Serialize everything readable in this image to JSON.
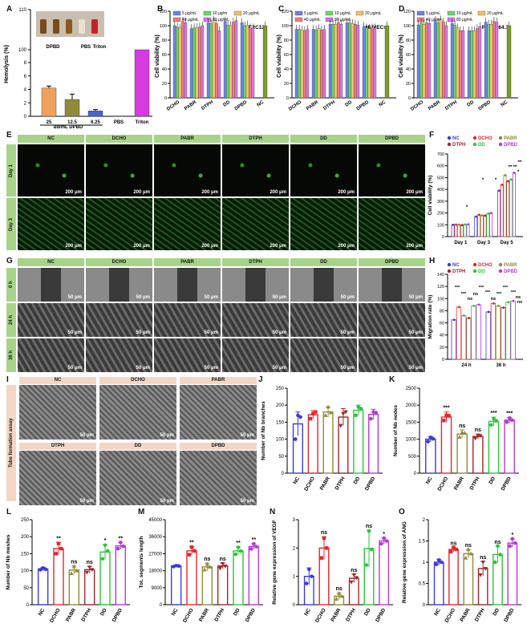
{
  "panels": {
    "A": "A",
    "B": "B",
    "C": "C",
    "D": "D",
    "E": "E",
    "F": "F",
    "G": "G",
    "H": "H",
    "I": "I",
    "J": "J",
    "K": "K",
    "L": "L",
    "M": "M",
    "N": "N",
    "O": "O"
  },
  "colors": {
    "NC": "#3b3bde",
    "DCHO": "#e8262c",
    "PABR": "#8f8b3a",
    "DTPH": "#a0262c",
    "DD": "#2fc43a",
    "DPBD": "#b43bd6"
  },
  "conc_colors": [
    "#6d80ee",
    "#6bd76b",
    "#e6c46a",
    "#f17b7b",
    "#d476e6",
    "#7c9a2a"
  ],
  "panelA": {
    "ylabel": "Hemolysis (%)",
    "photo_labels": [
      "DPBD",
      "PBS",
      "Triton"
    ],
    "xsub": "μg/mL DPBD",
    "categories": [
      "25",
      "12.5",
      "6.25",
      "PBS",
      "Triton"
    ],
    "values": [
      4.2,
      2.5,
      0.8,
      0.05,
      100
    ],
    "errors": [
      0.3,
      0.8,
      0.2,
      0.0,
      0.0
    ],
    "bar_colors": [
      "#f0a05e",
      "#8f8b3a",
      "#4a63d6",
      "#3b3bde",
      "#d63be0"
    ],
    "yticks": [
      0,
      2,
      4,
      6,
      8,
      100,
      110
    ]
  },
  "viability_panels": [
    {
      "id": "B",
      "cell": "C2C12",
      "legend": [
        "5 μg/mL",
        "10 μg/m",
        "20 μg/mL",
        "40 μg/mL",
        "80 μg/mL"
      ],
      "ylabel": "Cell viability (%)",
      "categories": [
        "DCHO",
        "PABR",
        "DTPH",
        "DD",
        "DPBD",
        "NC"
      ],
      "series": [
        [
          100,
          98,
          97,
          106,
          104
        ],
        [
          96,
          97,
          97,
          98,
          100
        ],
        [
          104,
          103,
          107,
          103,
          93
        ],
        [
          106,
          101,
          100,
          105,
          107
        ],
        [
          104,
          100,
          101,
          97,
          97
        ],
        [
          100
        ]
      ],
      "dcho_low": [
        92,
        85,
        76
      ]
    },
    {
      "id": "C",
      "cell": "HUVECs",
      "legend": [
        "5 μg/mL",
        "10 μg/mL",
        "20 μg/mL",
        "40 μg/mL",
        "80 μg/mL"
      ],
      "ylabel": "Cell viability (%)",
      "categories": [
        "DCHO",
        "PABR",
        "DTPH",
        "DD",
        "DPBD",
        "NC"
      ],
      "series": [
        [
          95,
          95,
          94,
          93,
          95
        ],
        [
          95,
          94,
          96,
          94,
          95
        ],
        [
          102,
          102,
          102,
          104,
          102
        ],
        [
          104,
          104,
          103,
          102,
          101
        ],
        [
          99,
          97,
          96,
          97,
          97
        ],
        [
          100
        ]
      ]
    },
    {
      "id": "D",
      "cell": "RAW 264.7",
      "legend": [
        "5 μg/mL",
        "10 μg/mL",
        "20 μg/mL",
        "40 μg/mL",
        "80 μg/mL"
      ],
      "ylabel": "Cell viability (%)",
      "categories": [
        "DCHO",
        "PABR",
        "DTPH",
        "DD",
        "DPBD",
        "NC"
      ],
      "series": [
        [
          101,
          104,
          102,
          104,
          103
        ],
        [
          107,
          104,
          108,
          105,
          100
        ],
        [
          103,
          101,
          97,
          93,
          93
        ],
        [
          93,
          93,
          93,
          96,
          99
        ],
        [
          105,
          102,
          102,
          106,
          105
        ],
        [
          100
        ]
      ]
    }
  ],
  "panelE": {
    "cols": [
      "NC",
      "DCHO",
      "PABR",
      "DTPH",
      "DD",
      "DPBD"
    ],
    "rows": [
      "Day 1",
      "Day 3"
    ],
    "scale": "200 μm"
  },
  "panelF": {
    "ylabel": "Cell viability (%)",
    "categories": [
      "Day 1",
      "Day 3",
      "Day 5"
    ],
    "legend": [
      "NC",
      "DCHO",
      "PABR",
      "DTPH",
      "DD",
      "DPBD"
    ],
    "values": {
      "NC": [
        100,
        170,
        390
      ],
      "DCHO": [
        102,
        185,
        440
      ],
      "PABR": [
        101,
        180,
        520
      ],
      "DTPH": [
        98,
        178,
        470
      ],
      "DD": [
        103,
        195,
        485
      ],
      "DPBD": [
        104,
        200,
        540
      ]
    },
    "yticks": [
      0,
      100,
      200,
      300,
      400,
      500,
      600,
      700
    ],
    "sig": [
      "*",
      "*",
      "*",
      "**",
      "**",
      "*",
      "**"
    ]
  },
  "panelG": {
    "cols": [
      "NC",
      "DCHO",
      "PABR",
      "DTPH",
      "DD",
      "DPBD"
    ],
    "rows": [
      "0 h",
      "24 h",
      "36 h"
    ],
    "scale": "50 μm"
  },
  "panelH": {
    "ylabel": "Migration rate (%)",
    "categories": [
      "24 h",
      "36 h"
    ],
    "legend": [
      "NC",
      "DCHO",
      "PABR",
      "DTPH",
      "DD",
      "DPBD"
    ],
    "values": {
      "NC": [
        65,
        78
      ],
      "DCHO": [
        86,
        92
      ],
      "PABR": [
        72,
        88
      ],
      "DTPH": [
        68,
        85
      ],
      "DD": [
        88,
        94
      ],
      "DPBD": [
        90,
        96
      ]
    },
    "yticks": [
      0,
      20,
      40,
      60,
      80,
      100,
      120,
      140
    ],
    "sig": [
      "***",
      "***",
      "ns",
      "ns",
      "***",
      "***",
      "ns",
      "***",
      "***",
      "***",
      "ns",
      "ns"
    ]
  },
  "panelI": {
    "side": "Tube formation assay",
    "tiles": [
      "NC",
      "DCHO",
      "PABR",
      "DTPH",
      "DD",
      "DPBD"
    ],
    "scale": "50 μm"
  },
  "dot_panels": [
    {
      "id": "J",
      "ylabel": "Number of Nb branches",
      "ymax": 250,
      "yticks": [
        0,
        50,
        100,
        150,
        200,
        250
      ],
      "means": [
        145,
        172,
        180,
        165,
        185,
        173
      ],
      "errs": [
        35,
        12,
        15,
        25,
        15,
        15
      ],
      "pts": [
        [
          100,
          170,
          165
        ],
        [
          160,
          175,
          180
        ],
        [
          170,
          195,
          178
        ],
        [
          140,
          175,
          180
        ],
        [
          170,
          195,
          190
        ],
        [
          160,
          180,
          178
        ]
      ],
      "sig": [
        "",
        "",
        "",
        "",
        "",
        ""
      ]
    },
    {
      "id": "K",
      "ylabel": "Number of Nb nodes",
      "ymax": 2500,
      "yticks": [
        0,
        500,
        1000,
        1500,
        2000,
        2500
      ],
      "means": [
        1000,
        1650,
        1150,
        1080,
        1520,
        1560
      ],
      "errs": [
        80,
        150,
        120,
        70,
        130,
        80
      ],
      "pts": [
        [
          930,
          1050,
          1010
        ],
        [
          1550,
          1700,
          1690
        ],
        [
          1060,
          1200,
          1180
        ],
        [
          1020,
          1110,
          1100
        ],
        [
          1420,
          1600,
          1540
        ],
        [
          1500,
          1620,
          1560
        ]
      ],
      "sig": [
        "",
        "***",
        "ns",
        "ns",
        "***",
        "***"
      ]
    },
    {
      "id": "L",
      "ylabel": "Number of Nb meshes",
      "ymax": 250,
      "yticks": [
        0,
        50,
        100,
        150,
        200,
        250
      ],
      "means": [
        105,
        165,
        102,
        103,
        155,
        173
      ],
      "errs": [
        5,
        18,
        12,
        10,
        22,
        10
      ],
      "pts": [
        [
          103,
          108,
          104
        ],
        [
          150,
          180,
          165
        ],
        [
          92,
          112,
          100
        ],
        [
          95,
          110,
          103
        ],
        [
          135,
          175,
          158
        ],
        [
          165,
          183,
          172
        ]
      ],
      "sig": [
        "",
        "**",
        "ns",
        "ns",
        "*",
        "**"
      ]
    },
    {
      "id": "M",
      "ylabel": "Tot. segments length",
      "ymax": 45000,
      "yticks": [
        0,
        9000,
        18000,
        27000,
        36000,
        45000
      ],
      "means": [
        20500,
        28500,
        20000,
        20500,
        28500,
        30800
      ],
      "errs": [
        300,
        2200,
        2000,
        1500,
        2000,
        1500
      ],
      "pts": [
        [
          20200,
          20700,
          20500
        ],
        [
          26500,
          30500,
          28500
        ],
        [
          18500,
          21500,
          20000
        ],
        [
          19300,
          21700,
          20400
        ],
        [
          26700,
          30400,
          28400
        ],
        [
          29500,
          32200,
          30700
        ]
      ],
      "sig": [
        "",
        "**",
        "ns",
        "ns",
        "**",
        "**"
      ]
    },
    {
      "id": "N",
      "ylabel": "Relative gene expression of VEGF",
      "ymax": 3,
      "yticks": [
        0,
        1,
        2,
        3
      ],
      "means": [
        1.0,
        2.0,
        0.3,
        0.93,
        1.98,
        2.25
      ],
      "errs": [
        0.3,
        0.4,
        0.12,
        0.15,
        0.65,
        0.1
      ],
      "pts": [
        [
          0.75,
          1.25,
          1.0
        ],
        [
          1.65,
          2.35,
          2.0
        ],
        [
          0.2,
          0.4,
          0.3
        ],
        [
          0.8,
          1.05,
          0.95
        ],
        [
          1.4,
          2.6,
          1.95
        ],
        [
          2.15,
          2.35,
          2.25
        ]
      ],
      "sig": [
        "",
        "ns",
        "ns",
        "ns",
        "ns",
        "*"
      ]
    },
    {
      "id": "O",
      "ylabel": "Relative gene expression of ANG",
      "ymax": 2.0,
      "yticks": [
        0.0,
        0.5,
        1.0,
        1.5,
        2.0
      ],
      "means": [
        1.0,
        1.3,
        1.2,
        0.85,
        1.18,
        1.45
      ],
      "errs": [
        0.07,
        0.05,
        0.1,
        0.17,
        0.2,
        0.1
      ],
      "pts": [
        [
          0.95,
          1.05,
          1.0
        ],
        [
          1.25,
          1.35,
          1.3
        ],
        [
          1.1,
          1.3,
          1.2
        ],
        [
          0.7,
          1.0,
          0.85
        ],
        [
          1.0,
          1.38,
          1.18
        ],
        [
          1.38,
          1.55,
          1.45
        ]
      ],
      "sig": [
        "",
        "ns",
        "ns",
        "ns",
        "ns",
        "*"
      ]
    }
  ],
  "groups": [
    "NC",
    "DCHO",
    "PABR",
    "DTPH",
    "DD",
    "DPBD"
  ],
  "chart_data": [
    {
      "type": "bar",
      "panel": "A",
      "ylabel": "Hemolysis (%)",
      "categories": [
        "25",
        "12.5",
        "6.25",
        "PBS",
        "Triton"
      ],
      "values": [
        4.2,
        2.5,
        0.8,
        0.05,
        100
      ],
      "xlabel": "μg/mL DPBD"
    },
    {
      "type": "bar",
      "panel": "B",
      "title": "C2C12",
      "ylabel": "Cell viability (%)",
      "categories": [
        "DCHO",
        "PABR",
        "DTPH",
        "DD",
        "DPBD",
        "NC"
      ]
    },
    {
      "type": "bar",
      "panel": "C",
      "title": "HUVECs",
      "ylabel": "Cell viability (%)",
      "categories": [
        "DCHO",
        "PABR",
        "DTPH",
        "DD",
        "DPBD",
        "NC"
      ]
    },
    {
      "type": "bar",
      "panel": "D",
      "title": "RAW 264.7",
      "ylabel": "Cell viability (%)",
      "categories": [
        "DCHO",
        "PABR",
        "DTPH",
        "DD",
        "DPBD",
        "NC"
      ]
    },
    {
      "type": "bar",
      "panel": "F",
      "ylabel": "Cell viability (%)",
      "categories": [
        "Day 1",
        "Day 3",
        "Day 5"
      ],
      "series": [
        {
          "name": "NC",
          "values": [
            100,
            170,
            390
          ]
        },
        {
          "name": "DCHO",
          "values": [
            102,
            185,
            440
          ]
        },
        {
          "name": "PABR",
          "values": [
            101,
            180,
            520
          ]
        },
        {
          "name": "DTPH",
          "values": [
            98,
            178,
            470
          ]
        },
        {
          "name": "DD",
          "values": [
            103,
            195,
            485
          ]
        },
        {
          "name": "DPBD",
          "values": [
            104,
            200,
            540
          ]
        }
      ]
    },
    {
      "type": "bar",
      "panel": "H",
      "ylabel": "Migration rate (%)",
      "categories": [
        "24 h",
        "36 h"
      ],
      "series": [
        {
          "name": "NC",
          "values": [
            65,
            78
          ]
        },
        {
          "name": "DCHO",
          "values": [
            86,
            92
          ]
        },
        {
          "name": "PABR",
          "values": [
            72,
            88
          ]
        },
        {
          "name": "DTPH",
          "values": [
            68,
            85
          ]
        },
        {
          "name": "DD",
          "values": [
            88,
            94
          ]
        },
        {
          "name": "DPBD",
          "values": [
            90,
            96
          ]
        }
      ]
    },
    {
      "type": "bar",
      "panel": "J",
      "ylabel": "Number of Nb branches",
      "categories": [
        "NC",
        "DCHO",
        "PABR",
        "DTPH",
        "DD",
        "DPBD"
      ],
      "values": [
        145,
        172,
        180,
        165,
        185,
        173
      ]
    },
    {
      "type": "bar",
      "panel": "K",
      "ylabel": "Number of Nb nodes",
      "categories": [
        "NC",
        "DCHO",
        "PABR",
        "DTPH",
        "DD",
        "DPBD"
      ],
      "values": [
        1000,
        1650,
        1150,
        1080,
        1520,
        1560
      ]
    },
    {
      "type": "bar",
      "panel": "L",
      "ylabel": "Number of Nb meshes",
      "categories": [
        "NC",
        "DCHO",
        "PABR",
        "DTPH",
        "DD",
        "DPBD"
      ],
      "values": [
        105,
        165,
        102,
        103,
        155,
        173
      ]
    },
    {
      "type": "bar",
      "panel": "M",
      "ylabel": "Tot. segments length",
      "categories": [
        "NC",
        "DCHO",
        "PABR",
        "DTPH",
        "DD",
        "DPBD"
      ],
      "values": [
        20500,
        28500,
        20000,
        20500,
        28500,
        30800
      ]
    },
    {
      "type": "bar",
      "panel": "N",
      "ylabel": "Relative gene expression of VEGF",
      "categories": [
        "NC",
        "DCHO",
        "PABR",
        "DTPH",
        "DD",
        "DPBD"
      ],
      "values": [
        1.0,
        2.0,
        0.3,
        0.93,
        1.98,
        2.25
      ]
    },
    {
      "type": "bar",
      "panel": "O",
      "ylabel": "Relative gene expression of ANG",
      "categories": [
        "NC",
        "DCHO",
        "PABR",
        "DTPH",
        "DD",
        "DPBD"
      ],
      "values": [
        1.0,
        1.3,
        1.2,
        0.85,
        1.18,
        1.45
      ]
    }
  ]
}
